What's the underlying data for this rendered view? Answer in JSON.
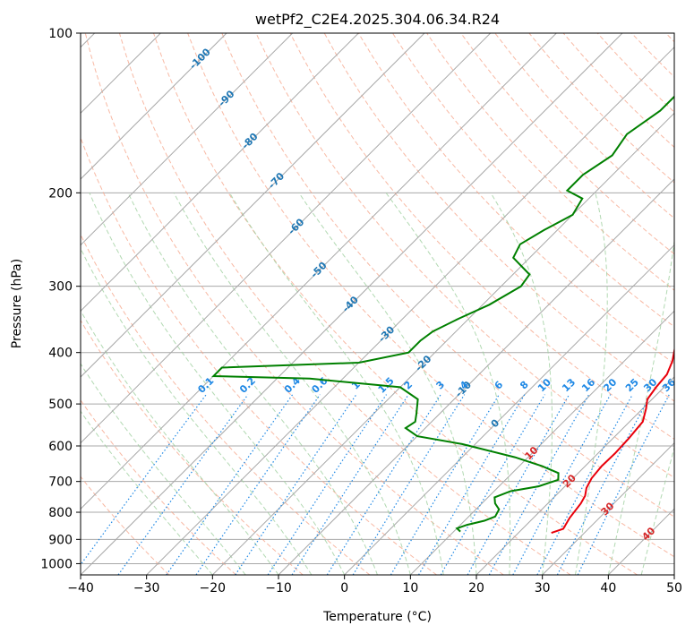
{
  "chart_data": {
    "type": "line",
    "title": "wetPf2_C2E4.2025.304.06.34.R24",
    "xlabel": "Temperature (°C)",
    "ylabel": "Pressure (hPa)",
    "xlim": [
      -40,
      50
    ],
    "ylim": [
      1050,
      100
    ],
    "y_scale": "log",
    "x_ticks": [
      -40,
      -30,
      -20,
      -10,
      0,
      10,
      20,
      30,
      40,
      50
    ],
    "x_tick_labels": [
      "−40",
      "−30",
      "−20",
      "−10",
      "0",
      "10",
      "20",
      "30",
      "40",
      "50"
    ],
    "y_ticks": [
      100,
      200,
      300,
      400,
      500,
      600,
      700,
      800,
      900,
      1000
    ],
    "y_tick_labels": [
      "100",
      "200",
      "300",
      "400",
      "500",
      "600",
      "700",
      "800",
      "900",
      "1000"
    ],
    "skew": 1,
    "colors": {
      "temperature": "#e8000b",
      "dewpoint": "#008000",
      "isotherm": "#a8a8a8",
      "dry_adiabat": "#f5a286",
      "moist_adiabat": "#9fcf9f",
      "mixing_ratio": "#1e88e5",
      "temp_label": "#1f77b4",
      "adiabat_label": "#d62728"
    },
    "series": [
      {
        "name": "Temperature",
        "points": [
          [
            25.0,
            875
          ],
          [
            26.2,
            860
          ],
          [
            25.5,
            820
          ],
          [
            25.0,
            770
          ],
          [
            24.5,
            745
          ],
          [
            23.5,
            720
          ],
          [
            22.8,
            690
          ],
          [
            22.5,
            655
          ],
          [
            22.6,
            620
          ],
          [
            22.4,
            580
          ],
          [
            22.0,
            540
          ],
          [
            20.5,
            510
          ],
          [
            19.3,
            490
          ],
          [
            18.8,
            465
          ],
          [
            18.5,
            440
          ],
          [
            17.3,
            415
          ],
          [
            14.8,
            380
          ],
          [
            12.5,
            345
          ],
          [
            10.8,
            310
          ],
          [
            9.5,
            285
          ],
          [
            7.5,
            262
          ],
          [
            3.5,
            235
          ],
          [
            0.5,
            210
          ],
          [
            -1.5,
            195
          ],
          [
            -4.5,
            180
          ],
          [
            -5.5,
            170
          ],
          [
            -6.5,
            155
          ],
          [
            -7.5,
            140
          ],
          [
            -9.8,
            130
          ],
          [
            -11.5,
            120
          ],
          [
            -12.5,
            112
          ],
          [
            -13.0,
            106
          ],
          [
            -13.5,
            101
          ]
        ]
      },
      {
        "name": "Dewpoint",
        "points": [
          [
            11.0,
            870
          ],
          [
            10.0,
            858
          ],
          [
            11.0,
            845
          ],
          [
            13.0,
            830
          ],
          [
            14.0,
            815
          ],
          [
            13.5,
            790
          ],
          [
            12.0,
            770
          ],
          [
            11.0,
            750
          ],
          [
            12.5,
            730
          ],
          [
            16.0,
            715
          ],
          [
            18.0,
            695
          ],
          [
            17.0,
            675
          ],
          [
            13.5,
            655
          ],
          [
            8.0,
            630
          ],
          [
            -2.0,
            595
          ],
          [
            -10.0,
            575
          ],
          [
            -13.0,
            555
          ],
          [
            -12.5,
            540
          ],
          [
            -13.5,
            522
          ],
          [
            -15.5,
            490
          ],
          [
            -20.0,
            465
          ],
          [
            -35.0,
            448
          ],
          [
            -50.0,
            443
          ],
          [
            -50.0,
            427
          ],
          [
            -30.0,
            418
          ],
          [
            -24.0,
            400
          ],
          [
            -24.0,
            380
          ],
          [
            -23.5,
            365
          ],
          [
            -21.5,
            345
          ],
          [
            -19.0,
            325
          ],
          [
            -17.0,
            300
          ],
          [
            -17.5,
            285
          ],
          [
            -22.5,
            265
          ],
          [
            -23.5,
            250
          ],
          [
            -22.0,
            235
          ],
          [
            -20.0,
            220
          ],
          [
            -21.0,
            205
          ],
          [
            -24.5,
            198
          ],
          [
            -24.5,
            185
          ],
          [
            -23.0,
            170
          ],
          [
            -24.0,
            155
          ],
          [
            -22.5,
            140
          ],
          [
            -22.5,
            130
          ],
          [
            -21.0,
            120
          ],
          [
            -21.0,
            112
          ],
          [
            -21.0,
            104
          ],
          [
            -20.5,
            100
          ]
        ]
      }
    ],
    "isotherm_labels": [
      "-100",
      "-90",
      "-80",
      "-70",
      "-60",
      "-50",
      "-40",
      "-30",
      "-20",
      "-10",
      "0"
    ],
    "isotherm_label_values": [
      -100,
      -90,
      -80,
      -70,
      -60,
      -50,
      -40,
      -30,
      -20,
      -10,
      0
    ],
    "isotherm_label_pressures": [
      112,
      133,
      160,
      190,
      232,
      280,
      325,
      370,
      420,
      470,
      545
    ],
    "mixing_ratio_labels": [
      "0.1",
      "0.2",
      "0.4",
      "0.6",
      "1",
      "1.5",
      "2",
      "3",
      "4",
      "6",
      "8",
      "10",
      "13",
      "16",
      "20",
      "25",
      "30",
      "36"
    ],
    "mixing_ratio_values": [
      0.1,
      0.2,
      0.4,
      0.6,
      1,
      1.5,
      2,
      3,
      4,
      6,
      8,
      10,
      13,
      16,
      20,
      25,
      30,
      36
    ],
    "mixing_ratio_label_pressure": 480,
    "adiabat_labels": [
      "10",
      "20",
      "30",
      "40"
    ],
    "adiabat_label_values": [
      10,
      20,
      30,
      40
    ],
    "adiabat_label_pressures": [
      620,
      700,
      790,
      880
    ]
  }
}
